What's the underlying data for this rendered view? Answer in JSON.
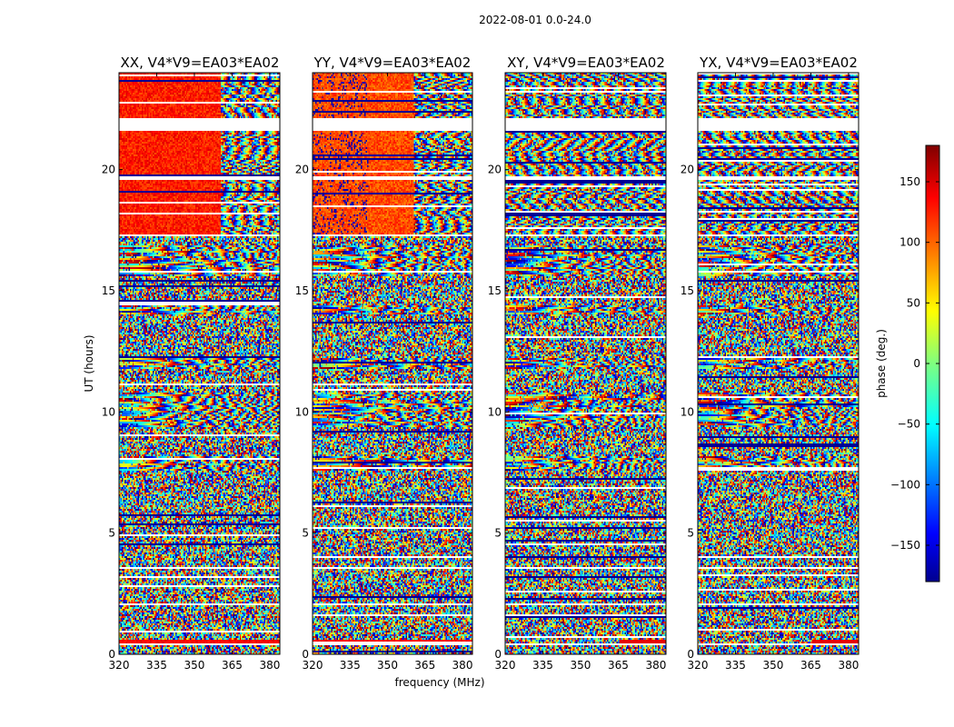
{
  "chart_data": {
    "type": "heatmap",
    "suptitle": "2022-08-01 0.0-24.0",
    "panels": [
      {
        "title": "XX, V4*V9=EA03*EA02",
        "pol": "XX"
      },
      {
        "title": "YY, V4*V9=EA03*EA02",
        "pol": "YY"
      },
      {
        "title": "XY, V4*V9=EA03*EA02",
        "pol": "XY"
      },
      {
        "title": "YX, V4*V9=EA03*EA02",
        "pol": "YX"
      }
    ],
    "xlabel": "frequency (MHz)",
    "ylabel": "UT (hours)",
    "xlim": [
      320,
      384
    ],
    "ylim": [
      0,
      24
    ],
    "xticks": [
      320,
      335,
      350,
      365,
      380
    ],
    "yticks": [
      0,
      5,
      10,
      15,
      20
    ],
    "colorbar": {
      "label": "phase (deg.)",
      "range": [
        -180,
        180
      ],
      "ticks": [
        -150,
        -100,
        -50,
        0,
        50,
        100,
        150
      ],
      "tick_labels": [
        "−150",
        "−100",
        "−50",
        "0",
        "50",
        "100",
        "150"
      ],
      "colormap": "jet",
      "colors": [
        "#00008f",
        "#0000ff",
        "#00ffff",
        "#7fff7f",
        "#ffff00",
        "#ff0000",
        "#800000"
      ]
    },
    "gaps_hours": [
      [
        21.6,
        22.1
      ],
      [
        19.55,
        19.75
      ],
      [
        17.25,
        17.3
      ],
      [
        0.35,
        0.45
      ],
      [
        3.55,
        3.6
      ],
      [
        6.05,
        6.1
      ],
      [
        12.95,
        13.0
      ],
      [
        2.05,
        2.1
      ]
    ],
    "bands": [
      {
        "t0": 0.45,
        "t1": 0.6,
        "kind": "coherent",
        "phase": 150
      },
      {
        "t0": 7.6,
        "t1": 8.2,
        "kind": "fringe"
      },
      {
        "t0": 9.4,
        "t1": 10.8,
        "kind": "fringe"
      },
      {
        "t0": 11.8,
        "t1": 12.2,
        "kind": "fringe"
      },
      {
        "t0": 14.0,
        "t1": 14.4,
        "kind": "fringe"
      },
      {
        "t0": 15.6,
        "t1": 16.9,
        "kind": "fringe"
      },
      {
        "t0": 17.3,
        "t1": 21.6,
        "kind": "parallel_coherent"
      },
      {
        "t0": 22.1,
        "t1": 24.0,
        "kind": "parallel_coherent"
      }
    ]
  }
}
